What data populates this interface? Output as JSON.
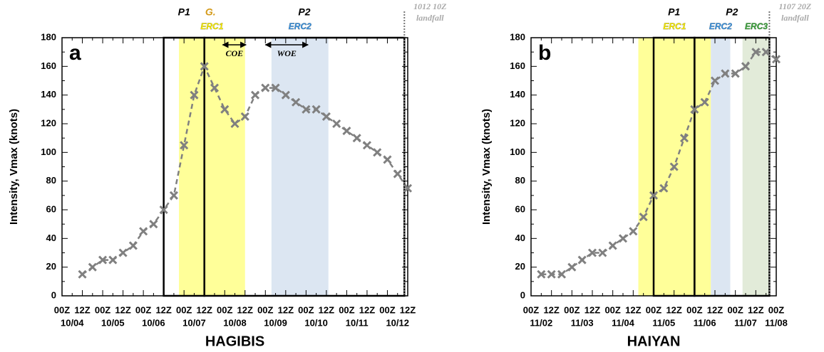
{
  "chart_data": [
    {
      "type": "line",
      "title": "HAGIBIS",
      "panel_label": "a",
      "ylabel": "Intensity, Vmax (knots)",
      "categories": [
        "00Z",
        null,
        "12Z",
        null,
        "00Z",
        null,
        "12Z",
        null,
        "00Z",
        null,
        "12Z",
        null,
        "00Z",
        null,
        "12Z",
        null,
        "00Z",
        null,
        "12Z",
        null,
        "00Z",
        null,
        "12Z",
        null,
        "00Z",
        null,
        "12Z",
        null,
        "00Z",
        null,
        "12Z",
        null,
        "00Z",
        null,
        "12Z"
      ],
      "dates": [
        null,
        "10/04",
        null,
        null,
        null,
        "10/05",
        null,
        null,
        null,
        "10/06",
        null,
        null,
        null,
        "10/07",
        null,
        null,
        null,
        "10/08",
        null,
        null,
        null,
        "10/09",
        null,
        null,
        null,
        "10/10",
        null,
        null,
        null,
        "10/11",
        null,
        null,
        null,
        "10/12",
        null
      ],
      "values": [
        null,
        null,
        15,
        20,
        25,
        25,
        30,
        35,
        45,
        50,
        60,
        70,
        105,
        140,
        160,
        145,
        130,
        120,
        125,
        140,
        145,
        145,
        140,
        135,
        130,
        130,
        125,
        120,
        115,
        110,
        105,
        100,
        95,
        85,
        75
      ],
      "color": "#808080",
      "ylim": [
        0,
        180
      ],
      "yticks": [
        0,
        20,
        40,
        60,
        80,
        100,
        120,
        140,
        160,
        180
      ],
      "shaded_spans": [
        {
          "label": "ERC1",
          "start": 11.5,
          "end": 18,
          "color": "#ffff99",
          "label_color": "#f2e600"
        },
        {
          "label": "ERC2",
          "start": 20.6,
          "end": 26.2,
          "color": "#dce6f2",
          "label_color": "#3a8fd9"
        }
      ],
      "periods": [
        {
          "label": "P1",
          "start": 10,
          "end": 14
        },
        {
          "label": "P2",
          "start": 14,
          "end": 33.67
        }
      ],
      "markers": [
        {
          "label": "G.",
          "at": 14.6,
          "color": "#d49a1a"
        }
      ],
      "arrows": [
        {
          "label": "COE",
          "start": 15.8,
          "end": 18.1
        },
        {
          "label": "WOE",
          "start": 20.0,
          "end": 24.2
        }
      ],
      "landfall": {
        "at": 33.67,
        "label": [
          "1012 10Z",
          "landfall"
        ]
      }
    },
    {
      "type": "line",
      "title": "HAIYAN",
      "panel_label": "b",
      "ylabel": "Intensity, Vmax (knots)",
      "categories": [
        "00Z",
        null,
        "12Z",
        null,
        "00Z",
        null,
        "12Z",
        null,
        "00Z",
        null,
        "12Z",
        null,
        "00Z",
        null,
        "12Z",
        null,
        "00Z",
        null,
        "12Z",
        null,
        "00Z",
        null,
        "12Z",
        null,
        "00Z"
      ],
      "dates": [
        null,
        "11/02",
        null,
        null,
        null,
        "11/03",
        null,
        null,
        null,
        "11/04",
        null,
        null,
        null,
        "11/05",
        null,
        null,
        null,
        "11/06",
        null,
        null,
        null,
        "11/07",
        null,
        null,
        "11/08"
      ],
      "values": [
        null,
        15,
        15,
        15,
        20,
        25,
        30,
        30,
        35,
        40,
        45,
        55,
        70,
        75,
        90,
        110,
        130,
        135,
        150,
        155,
        155,
        160,
        170,
        170,
        165
      ],
      "color": "#808080",
      "ylim": [
        0,
        180
      ],
      "yticks": [
        0,
        20,
        40,
        60,
        80,
        100,
        120,
        140,
        160,
        180
      ],
      "shaded_spans": [
        {
          "label": "ERC1",
          "start": 10.5,
          "end": 17.6,
          "color": "#ffff99",
          "label_color": "#f2e600"
        },
        {
          "label": "ERC2",
          "start": 17.6,
          "end": 19.5,
          "color": "#dce6f2",
          "label_color": "#3a8fd9"
        },
        {
          "label": "ERC3",
          "start": 20.7,
          "end": 23.4,
          "color": "#e2ebd9",
          "label_color": "#3aa03a"
        }
      ],
      "periods": [
        {
          "label": "P1",
          "start": 12,
          "end": 16
        },
        {
          "label": "P2",
          "start": 16,
          "end": 23.33
        }
      ],
      "markers": [],
      "arrows": [],
      "landfall": {
        "at": 23.33,
        "label": [
          "1107 20Z",
          "landfall"
        ]
      }
    }
  ]
}
